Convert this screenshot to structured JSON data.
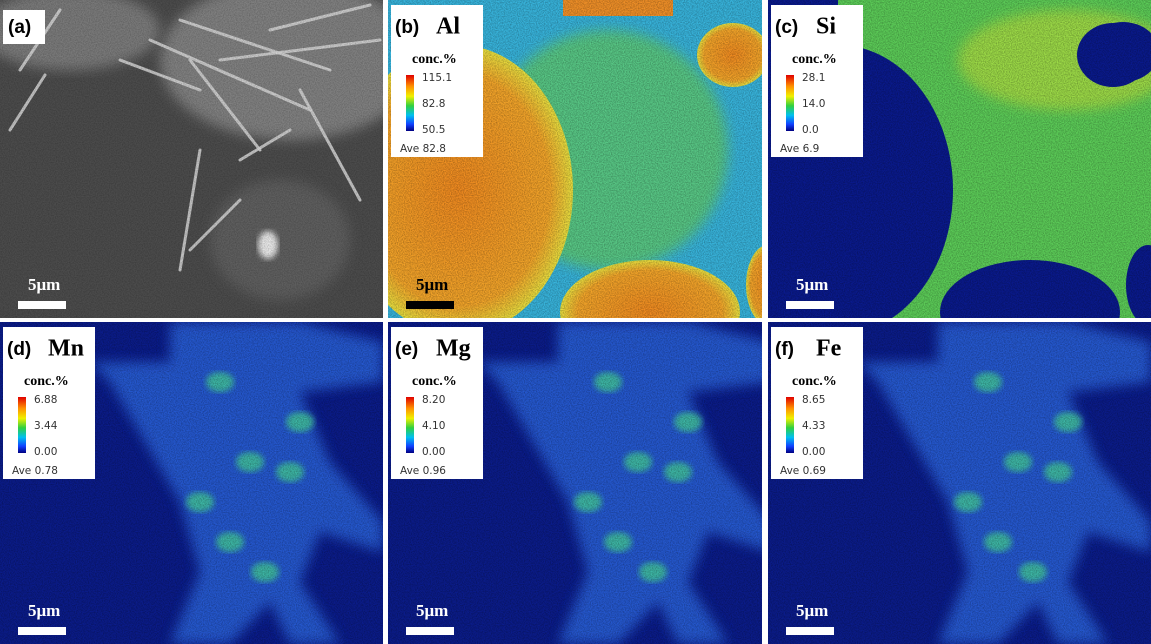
{
  "panels": [
    {
      "label": "(a)",
      "scale_bar": "5μm"
    },
    {
      "label": "(b)",
      "element": "Al",
      "legend": {
        "unit": "conc.%",
        "ticks": [
          "115.1",
          "82.8",
          "50.5"
        ],
        "average": "Ave 82.8"
      },
      "scale_bar": "5μm"
    },
    {
      "label": "(c)",
      "element": "Si",
      "legend": {
        "unit": "conc.%",
        "ticks": [
          "28.1",
          "14.0",
          "0.0"
        ],
        "average": "Ave 6.9"
      },
      "scale_bar": "5μm"
    },
    {
      "label": "(d)",
      "element": "Mn",
      "legend": {
        "unit": "conc.%",
        "ticks": [
          "6.88",
          "3.44",
          "0.00"
        ],
        "average": "Ave 0.78"
      },
      "scale_bar": "5μm"
    },
    {
      "label": "(e)",
      "element": "Mg",
      "legend": {
        "unit": "conc.%",
        "ticks": [
          "8.20",
          "4.10",
          "0.00"
        ],
        "average": "Ave 0.96"
      },
      "scale_bar": "5μm"
    },
    {
      "label": "(f)",
      "element": "Fe",
      "legend": {
        "unit": "conc.%",
        "ticks": [
          "8.65",
          "4.33",
          "0.00"
        ],
        "average": "Ave 0.69"
      },
      "scale_bar": "5μm"
    }
  ]
}
